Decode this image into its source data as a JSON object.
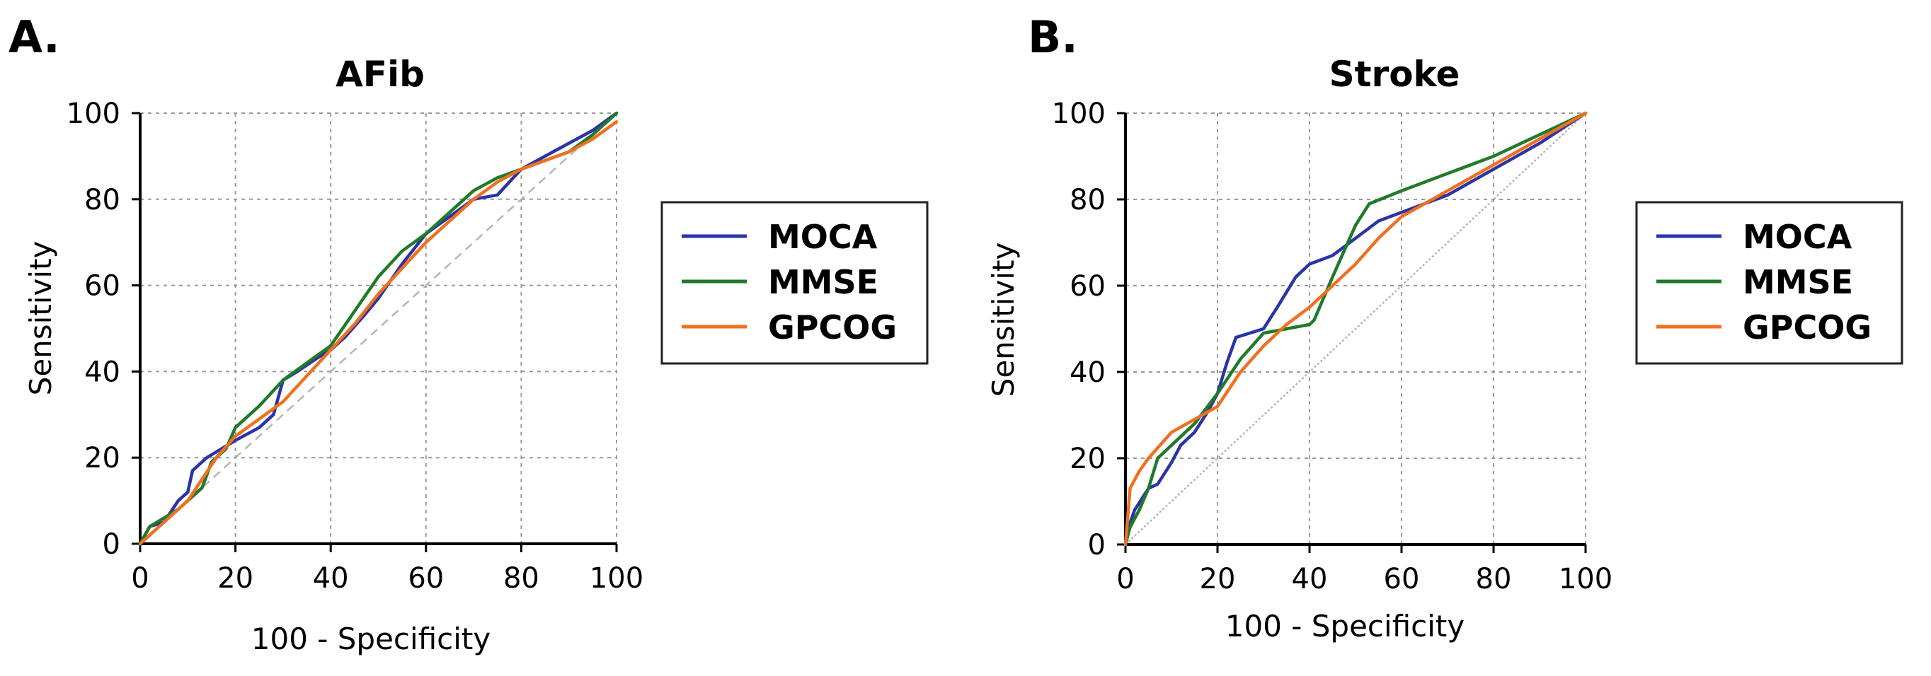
{
  "figure": {
    "panel_labels": [
      "A.",
      "B."
    ]
  },
  "legend": {
    "entries": [
      {
        "name": "MOCA",
        "color": "#2b34a6"
      },
      {
        "name": "MMSE",
        "color": "#1f7a2a"
      },
      {
        "name": "GPCOG",
        "color": "#f07020"
      }
    ]
  },
  "chart_data": [
    {
      "panel": "A.",
      "type": "line",
      "title": "AFib",
      "xlabel": "100 - Specificity",
      "ylabel": "Sensitivity",
      "xlim": [
        0,
        100
      ],
      "ylim": [
        0,
        100
      ],
      "xticks": [
        0,
        20,
        40,
        60,
        80,
        100
      ],
      "yticks": [
        0,
        20,
        40,
        60,
        80,
        100
      ],
      "grid": true,
      "diagonal_reference": true,
      "legend_position": "right",
      "series": [
        {
          "name": "MOCA",
          "points": [
            [
              0,
              0
            ],
            [
              2,
              4
            ],
            [
              5,
              5
            ],
            [
              8,
              10
            ],
            [
              10,
              12
            ],
            [
              11,
              17
            ],
            [
              14,
              20
            ],
            [
              17,
              22
            ],
            [
              20,
              24
            ],
            [
              25,
              27
            ],
            [
              28,
              30
            ],
            [
              30,
              38
            ],
            [
              33,
              40
            ],
            [
              37,
              43
            ],
            [
              40,
              45
            ],
            [
              43,
              48
            ],
            [
              47,
              53
            ],
            [
              50,
              57
            ],
            [
              55,
              65
            ],
            [
              60,
              72
            ],
            [
              65,
              76
            ],
            [
              70,
              80
            ],
            [
              75,
              81
            ],
            [
              80,
              87
            ],
            [
              85,
              90
            ],
            [
              90,
              93
            ],
            [
              95,
              96
            ],
            [
              100,
              100
            ]
          ]
        },
        {
          "name": "MMSE",
          "points": [
            [
              0,
              0
            ],
            [
              2,
              4
            ],
            [
              5,
              6
            ],
            [
              8,
              8
            ],
            [
              10,
              10
            ],
            [
              13,
              13
            ],
            [
              15,
              19
            ],
            [
              18,
              22
            ],
            [
              20,
              27
            ],
            [
              25,
              32
            ],
            [
              30,
              38
            ],
            [
              35,
              42
            ],
            [
              40,
              46
            ],
            [
              45,
              54
            ],
            [
              50,
              62
            ],
            [
              55,
              68
            ],
            [
              60,
              72
            ],
            [
              65,
              77
            ],
            [
              70,
              82
            ],
            [
              75,
              85
            ],
            [
              80,
              87
            ],
            [
              85,
              89
            ],
            [
              90,
              91
            ],
            [
              95,
              95
            ],
            [
              100,
              100
            ]
          ]
        },
        {
          "name": "GPCOG",
          "points": [
            [
              0,
              0
            ],
            [
              3,
              3
            ],
            [
              6,
              6
            ],
            [
              10,
              10
            ],
            [
              13,
              15
            ],
            [
              16,
              20
            ],
            [
              20,
              25
            ],
            [
              25,
              29
            ],
            [
              30,
              33
            ],
            [
              35,
              39
            ],
            [
              40,
              45
            ],
            [
              45,
              51
            ],
            [
              50,
              58
            ],
            [
              55,
              64
            ],
            [
              60,
              70
            ],
            [
              65,
              75
            ],
            [
              70,
              80
            ],
            [
              75,
              84
            ],
            [
              80,
              87
            ],
            [
              85,
              89
            ],
            [
              90,
              91
            ],
            [
              95,
              94
            ],
            [
              100,
              98
            ]
          ]
        }
      ]
    },
    {
      "panel": "B.",
      "type": "line",
      "title": "Stroke",
      "xlabel": "100 - Specificity",
      "ylabel": "Sensitivity",
      "xlim": [
        0,
        100
      ],
      "ylim": [
        0,
        100
      ],
      "xticks": [
        0,
        20,
        40,
        60,
        80,
        100
      ],
      "yticks": [
        0,
        20,
        40,
        60,
        80,
        100
      ],
      "grid": true,
      "diagonal_reference": true,
      "legend_position": "right",
      "series": [
        {
          "name": "MOCA",
          "points": [
            [
              0,
              0
            ],
            [
              1,
              5
            ],
            [
              2,
              8
            ],
            [
              5,
              13
            ],
            [
              7,
              14
            ],
            [
              10,
              19
            ],
            [
              12,
              23
            ],
            [
              15,
              26
            ],
            [
              18,
              31
            ],
            [
              20,
              35
            ],
            [
              22,
              42
            ],
            [
              24,
              48
            ],
            [
              27,
              49
            ],
            [
              30,
              50
            ],
            [
              33,
              55
            ],
            [
              37,
              62
            ],
            [
              40,
              65
            ],
            [
              45,
              67
            ],
            [
              50,
              71
            ],
            [
              55,
              75
            ],
            [
              60,
              77
            ],
            [
              70,
              81
            ],
            [
              80,
              87
            ],
            [
              90,
              93
            ],
            [
              100,
              100
            ]
          ]
        },
        {
          "name": "MMSE",
          "points": [
            [
              0,
              0
            ],
            [
              1,
              4
            ],
            [
              3,
              8
            ],
            [
              5,
              13
            ],
            [
              7,
              20
            ],
            [
              10,
              23
            ],
            [
              15,
              28
            ],
            [
              20,
              35
            ],
            [
              25,
              43
            ],
            [
              30,
              49
            ],
            [
              35,
              50
            ],
            [
              40,
              51
            ],
            [
              41,
              52
            ],
            [
              45,
              62
            ],
            [
              50,
              74
            ],
            [
              53,
              79
            ],
            [
              60,
              82
            ],
            [
              70,
              86
            ],
            [
              80,
              90
            ],
            [
              90,
              95
            ],
            [
              100,
              100
            ]
          ]
        },
        {
          "name": "GPCOG",
          "points": [
            [
              0,
              0
            ],
            [
              1,
              13
            ],
            [
              3,
              17
            ],
            [
              5,
              20
            ],
            [
              10,
              26
            ],
            [
              15,
              29
            ],
            [
              20,
              32
            ],
            [
              25,
              40
            ],
            [
              30,
              46
            ],
            [
              35,
              51
            ],
            [
              40,
              55
            ],
            [
              45,
              60
            ],
            [
              50,
              65
            ],
            [
              55,
              71
            ],
            [
              60,
              76
            ],
            [
              70,
              82
            ],
            [
              80,
              88
            ],
            [
              90,
              94
            ],
            [
              100,
              100
            ]
          ]
        }
      ]
    }
  ]
}
